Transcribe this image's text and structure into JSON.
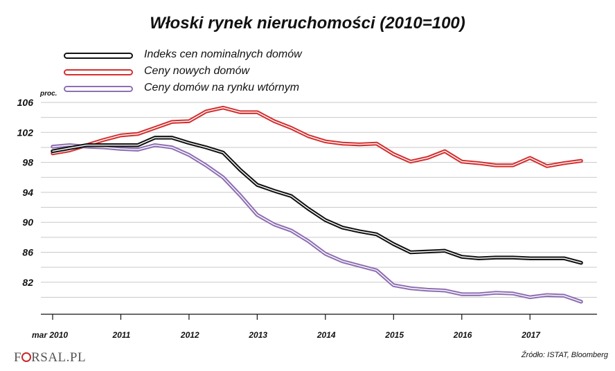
{
  "chart_data": {
    "type": "line",
    "title": "Włoski rynek nieruchomości (2010=100)",
    "ylabel": "proc.",
    "ylim": [
      78,
      107
    ],
    "yticks": [
      82,
      86,
      90,
      94,
      98,
      102,
      106
    ],
    "xlim": [
      2010.0,
      2017.8
    ],
    "xticks": [
      2010.0,
      2011.0,
      2012.0,
      2013.0,
      2014.0,
      2015.0,
      2016.0,
      2017.0
    ],
    "xticklabels": [
      "mar 2010",
      "2011",
      "2012",
      "2013",
      "2014",
      "2015",
      "2016",
      "2017"
    ],
    "grid": true,
    "legend_position": "top-left",
    "series": [
      {
        "name": "Indeks cen nominalnych domów",
        "color": "#111111",
        "x": [
          2010.0,
          2010.25,
          2010.5,
          2010.75,
          2011.0,
          2011.25,
          2011.5,
          2011.75,
          2012.0,
          2012.25,
          2012.5,
          2012.75,
          2013.0,
          2013.25,
          2013.5,
          2013.75,
          2014.0,
          2014.25,
          2014.5,
          2014.75,
          2015.0,
          2015.25,
          2015.5,
          2015.75,
          2016.0,
          2016.25,
          2016.5,
          2016.75,
          2017.0,
          2017.25,
          2017.5,
          2017.75
        ],
        "values": [
          99.5,
          99.9,
          100.3,
          100.3,
          100.3,
          100.3,
          101.3,
          101.3,
          100.6,
          100.0,
          99.3,
          97.0,
          95.0,
          94.2,
          93.5,
          91.8,
          90.3,
          89.3,
          88.8,
          88.4,
          87.1,
          86.0,
          86.1,
          86.2,
          85.4,
          85.2,
          85.3,
          85.3,
          85.2,
          85.2,
          85.2,
          84.6
        ]
      },
      {
        "name": "Ceny nowych domów",
        "color": "#d32f2f",
        "x": [
          2010.0,
          2010.25,
          2010.5,
          2010.75,
          2011.0,
          2011.25,
          2011.5,
          2011.75,
          2012.0,
          2012.25,
          2012.5,
          2012.75,
          2013.0,
          2013.25,
          2013.5,
          2013.75,
          2014.0,
          2014.25,
          2014.5,
          2014.75,
          2015.0,
          2015.25,
          2015.5,
          2015.75,
          2016.0,
          2016.25,
          2016.5,
          2016.75,
          2017.0,
          2017.25,
          2017.5,
          2017.75
        ],
        "values": [
          99.2,
          99.6,
          100.3,
          101.0,
          101.6,
          101.8,
          102.6,
          103.4,
          103.5,
          104.8,
          105.3,
          104.7,
          104.7,
          103.5,
          102.6,
          101.5,
          100.8,
          100.5,
          100.4,
          100.5,
          99.1,
          98.1,
          98.6,
          99.5,
          98.1,
          97.9,
          97.6,
          97.6,
          98.6,
          97.5,
          97.9,
          98.2
        ]
      },
      {
        "name": "Ceny domów na rynku wtórnym",
        "color": "#8e6fb3",
        "x": [
          2010.0,
          2010.25,
          2010.5,
          2010.75,
          2011.0,
          2011.25,
          2011.5,
          2011.75,
          2012.0,
          2012.25,
          2012.5,
          2012.75,
          2013.0,
          2013.25,
          2013.5,
          2013.75,
          2014.0,
          2014.25,
          2014.5,
          2014.75,
          2015.0,
          2015.25,
          2015.5,
          2015.75,
          2016.0,
          2016.25,
          2016.5,
          2016.75,
          2017.0,
          2017.25,
          2017.5,
          2017.75
        ],
        "values": [
          100.1,
          100.3,
          100.1,
          100.0,
          99.8,
          99.7,
          100.3,
          100.0,
          99.0,
          97.6,
          96.0,
          93.6,
          91.0,
          89.7,
          88.9,
          87.5,
          85.8,
          84.8,
          84.2,
          83.6,
          81.6,
          81.2,
          81.0,
          80.9,
          80.4,
          80.4,
          80.6,
          80.5,
          80.0,
          80.3,
          80.2,
          79.4
        ]
      }
    ],
    "source": "Źródło: ISTAT, Bloomberg"
  },
  "branding": {
    "logo_prefix": "F",
    "logo_suffix": "RSAL.PL"
  }
}
